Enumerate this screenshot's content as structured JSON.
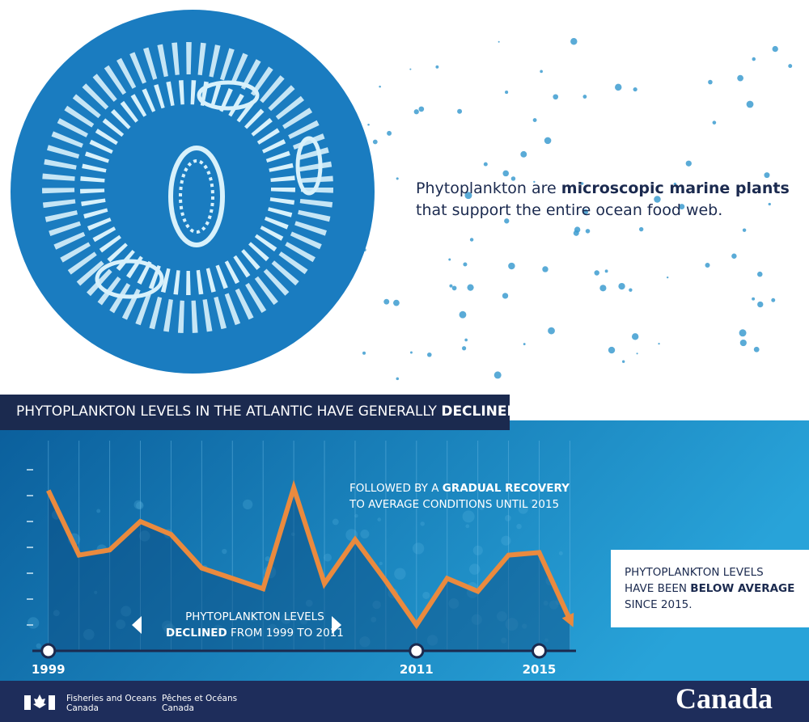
{
  "intro": {
    "before": "Phytoplankton are ",
    "emphasis": "microscopic marine plants",
    "after": "that support the entire ocean food web."
  },
  "chart_data": {
    "type": "line",
    "title": {
      "text": "PHYTOPLANKTON LEVELS IN THE ATLANTIC HAVE GENERALLY ",
      "emphasis": "DECLINED"
    },
    "x": [
      1999,
      2000,
      2001,
      2002,
      2003,
      2004,
      2005,
      2006,
      2007,
      2008,
      2009,
      2010,
      2011,
      2012,
      2013,
      2014,
      2015,
      2016
    ],
    "series": [
      {
        "color": "#ea8a3e",
        "values": [
          6.2,
          3.7,
          3.9,
          5.0,
          4.5,
          3.2,
          2.8,
          2.4,
          6.3,
          2.6,
          4.3,
          2.7,
          1.0,
          2.8,
          2.3,
          3.7,
          3.8,
          1.2
        ]
      }
    ],
    "xlim": [
      1998.4,
      2016.2
    ],
    "xticks": [
      1999,
      2011,
      2015
    ],
    "ylim": [
      0,
      7
    ],
    "yticks": [
      1,
      2,
      3,
      4,
      5,
      6,
      7
    ],
    "grid": true,
    "annotations": [
      {
        "text": "FOLLOWED BY A ",
        "emphasis": "GRADUAL RECOVERY",
        "line2": "TO AVERAGE CONDITIONS UNTIL 2015"
      },
      {
        "text": "PHYTOPLANKTON LEVELS",
        "emphasis": "DECLINED",
        "line2": " FROM 1999 TO 2011"
      },
      {
        "text": "PHYTOPLANKTON LEVELS",
        "line2": "HAVE BEEN ",
        "emphasis": "BELOW AVERAGE",
        "line3": "SINCE 2015."
      }
    ]
  },
  "footer": {
    "en_1": "Fisheries and Oceans",
    "en_2": "Canada",
    "fr_1": "Pêches et Océans",
    "fr_2": "Canada",
    "wordmark": "Canada"
  }
}
